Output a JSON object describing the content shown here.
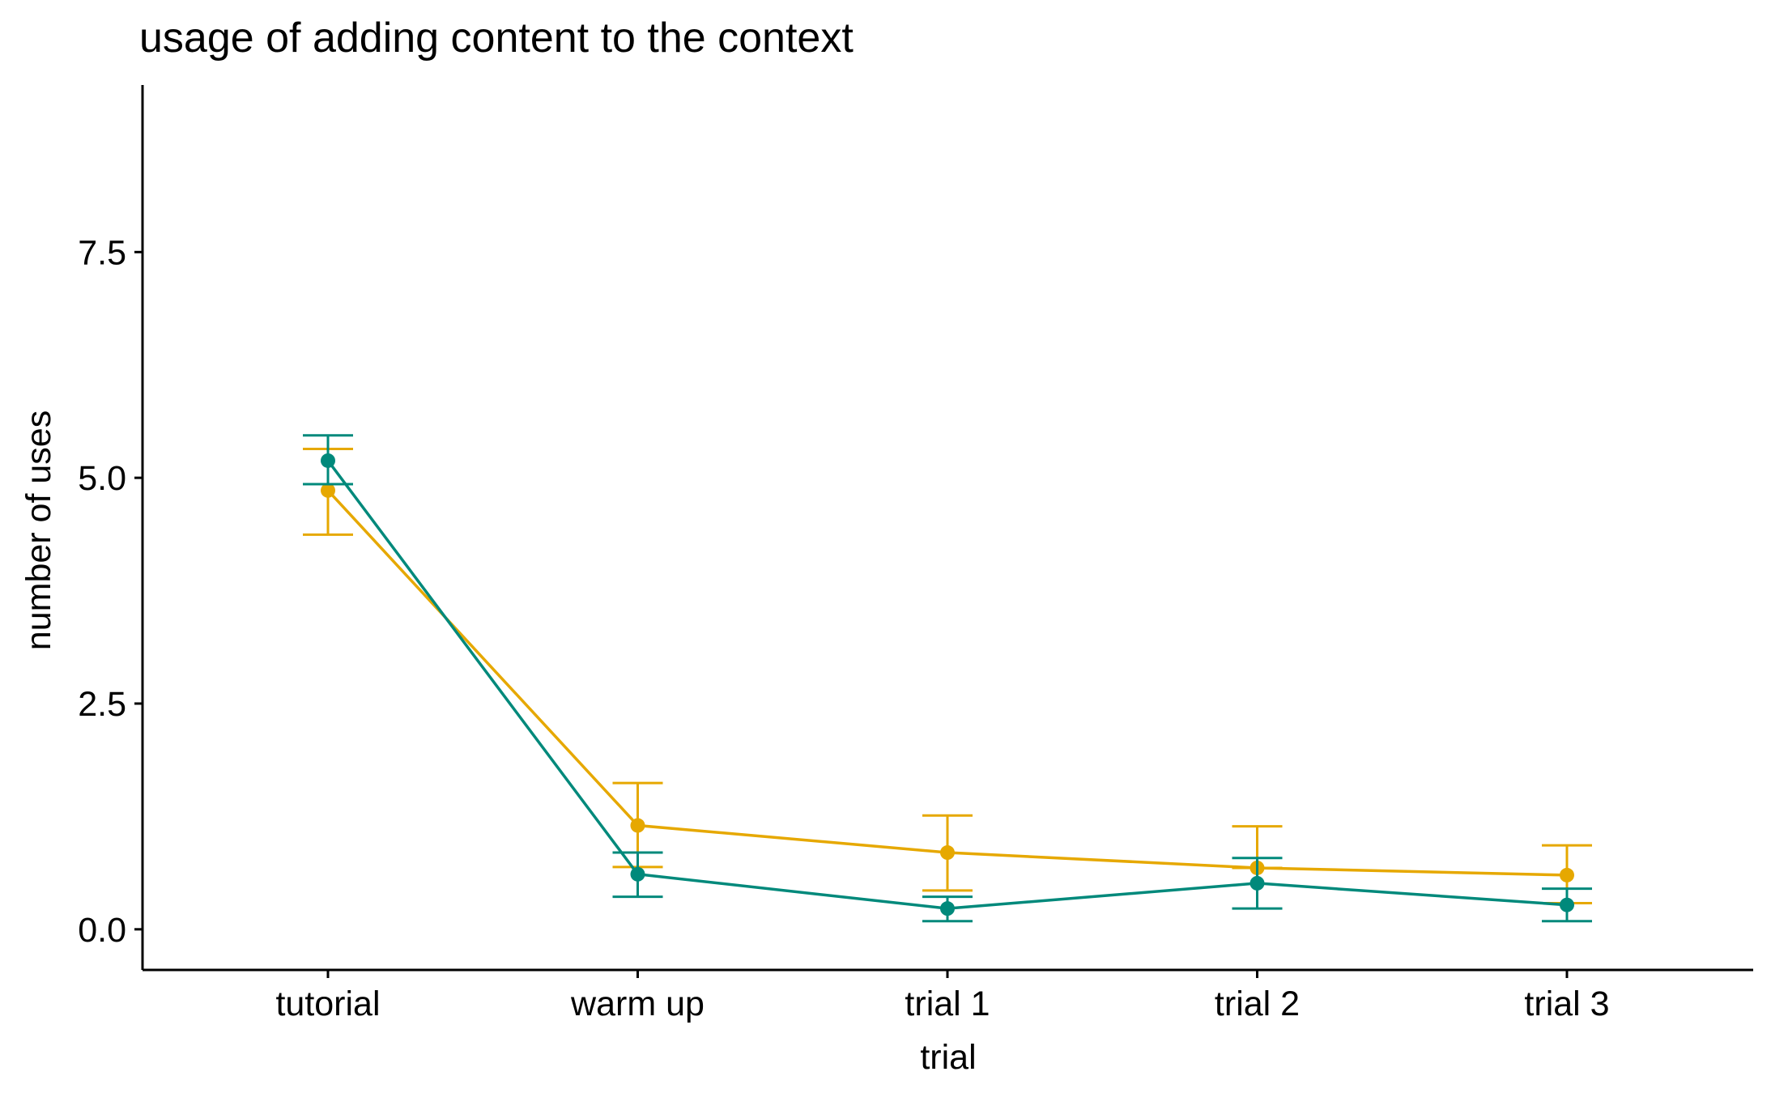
{
  "colors": {
    "background": "#ffffff",
    "axis": "#000000",
    "series_a": "#e6a800",
    "series_b": "#00897b"
  },
  "chart_data": {
    "type": "line",
    "title": "usage of adding content to the context",
    "xlabel": "trial",
    "ylabel": "number of uses",
    "categories": [
      "tutorial",
      "warm up",
      "trial 1",
      "trial 2",
      "trial 3"
    ],
    "yticks": [
      "0.0",
      "2.5",
      "5.0",
      "7.5"
    ],
    "ytick_values": [
      0,
      2.5,
      5,
      7.5
    ],
    "ylim": [
      -0.45,
      9.35
    ],
    "grid": false,
    "legend": "none",
    "error_bars": true,
    "series": [
      {
        "color": "#e6a800",
        "values": [
          4.86,
          1.15,
          0.85,
          0.68,
          0.6
        ],
        "err_low": [
          4.37,
          0.69,
          0.43,
          0.68,
          0.29
        ],
        "err_high": [
          5.32,
          1.62,
          1.26,
          1.14,
          0.93
        ]
      },
      {
        "color": "#00897b",
        "values": [
          5.19,
          0.61,
          0.23,
          0.51,
          0.27
        ],
        "err_low": [
          4.93,
          0.36,
          0.09,
          0.23,
          0.09
        ],
        "err_high": [
          5.47,
          0.85,
          0.36,
          0.79,
          0.45
        ]
      }
    ]
  }
}
